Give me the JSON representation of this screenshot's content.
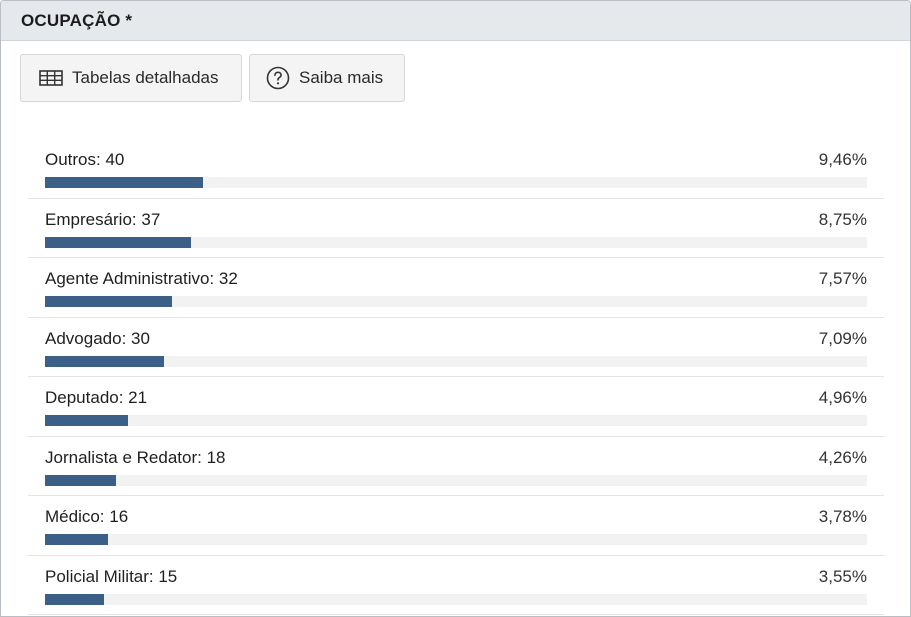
{
  "panel": {
    "title": "OCUPAÇÃO *"
  },
  "toolbar": {
    "tables_label": "Tabelas detalhadas",
    "tables_icon": "table-icon",
    "help_label": "Saiba mais",
    "help_icon": "question-circle-icon"
  },
  "colors": {
    "bar": "#3b5f86",
    "track": "#f2f2f2",
    "header": "#e6e9ec"
  },
  "items": [
    {
      "label": "Outros: 40",
      "percent": "9,46%",
      "value": 40
    },
    {
      "label": "Empresário: 37",
      "percent": "8,75%",
      "value": 37
    },
    {
      "label": "Agente Administrativo: 32",
      "percent": "7,57%",
      "value": 32
    },
    {
      "label": "Advogado: 30",
      "percent": "7,09%",
      "value": 30
    },
    {
      "label": "Deputado: 21",
      "percent": "4,96%",
      "value": 21
    },
    {
      "label": "Jornalista e Redator: 18",
      "percent": "4,26%",
      "value": 18
    },
    {
      "label": "Médico: 16",
      "percent": "3,78%",
      "value": 16
    },
    {
      "label": "Policial Militar: 15",
      "percent": "3,55%",
      "value": 15
    }
  ]
}
